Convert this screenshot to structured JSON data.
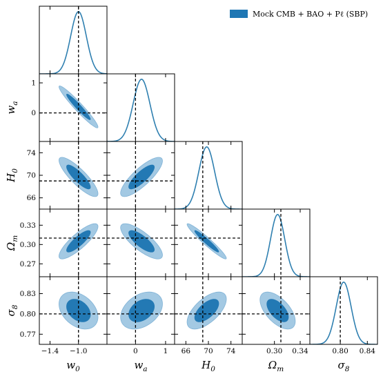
{
  "chart_data": {
    "type": "corner",
    "legend": {
      "label": "Mock CMB + BAO + Pℓ (SBP)",
      "color": "#1f77b4",
      "placement": "top-right"
    },
    "colors": {
      "line": "#2e7fb0",
      "inner": "#2379b4",
      "outer": "#a3c9e3",
      "outer_edge": "#7fb2d6",
      "truth_line": "#000000"
    },
    "parameters": [
      {
        "label_main": "w",
        "label_sub": "0",
        "range": [
          -1.55,
          -0.6
        ],
        "truth": -1.0,
        "mean": -1.0,
        "sigma": 0.11,
        "ticks": [
          -1.4,
          -1.0
        ],
        "tick_labels": [
          "−1.4",
          "−1.0"
        ]
      },
      {
        "label_main": "w",
        "label_sub": "a",
        "range": [
          -0.95,
          1.3
        ],
        "truth": 0.0,
        "mean": 0.2,
        "sigma": 0.28,
        "ticks": [
          0,
          1
        ],
        "tick_labels": [
          "0",
          "1"
        ]
      },
      {
        "label_main": "H",
        "label_sub": "0",
        "range": [
          64.0,
          76.0
        ],
        "truth": 69.0,
        "mean": 69.7,
        "sigma": 1.4,
        "ticks": [
          66,
          70,
          74
        ],
        "tick_labels": [
          "66",
          "70",
          "74"
        ]
      },
      {
        "label_main": "Ω",
        "label_sub": "m",
        "range": [
          0.25,
          0.355
        ],
        "truth": 0.31,
        "mean": 0.305,
        "sigma": 0.011,
        "ticks": [
          0.27,
          0.3,
          0.33
        ],
        "tick_labels": [
          "0.27",
          "0.30",
          "0.33"
        ]
      },
      {
        "label_main": "σ",
        "label_sub": "8",
        "range": [
          0.755,
          0.855
        ],
        "truth": 0.8,
        "mean": 0.805,
        "sigma": 0.011,
        "ticks": [
          0.77,
          0.8,
          0.83
        ],
        "tick_labels": [
          "0.77",
          "0.80",
          "0.83"
        ]
      }
    ],
    "x_tick_overrides": {
      "3": {
        "ticks": [
          0.3,
          0.34
        ],
        "tick_labels": [
          "0.30",
          "0.34"
        ]
      },
      "4": {
        "ticks": [
          0.8,
          0.84
        ],
        "tick_labels": [
          "0.80",
          "0.84"
        ]
      }
    },
    "correlations": [
      {
        "pair": [
          1,
          0
        ],
        "rho": -0.96
      },
      {
        "pair": [
          2,
          0
        ],
        "rho": -0.85
      },
      {
        "pair": [
          2,
          1
        ],
        "rho": 0.82
      },
      {
        "pair": [
          3,
          0
        ],
        "rho": 0.84
      },
      {
        "pair": [
          3,
          1
        ],
        "rho": -0.78
      },
      {
        "pair": [
          3,
          2
        ],
        "rho": -0.96
      },
      {
        "pair": [
          4,
          0
        ],
        "rho": -0.35
      },
      {
        "pair": [
          4,
          1
        ],
        "rho": 0.36
      },
      {
        "pair": [
          4,
          2
        ],
        "rho": 0.62
      },
      {
        "pair": [
          4,
          3
        ],
        "rho": -0.58
      }
    ],
    "contour_levels_sigma": [
      1.52,
      2.49
    ],
    "grid": false
  }
}
